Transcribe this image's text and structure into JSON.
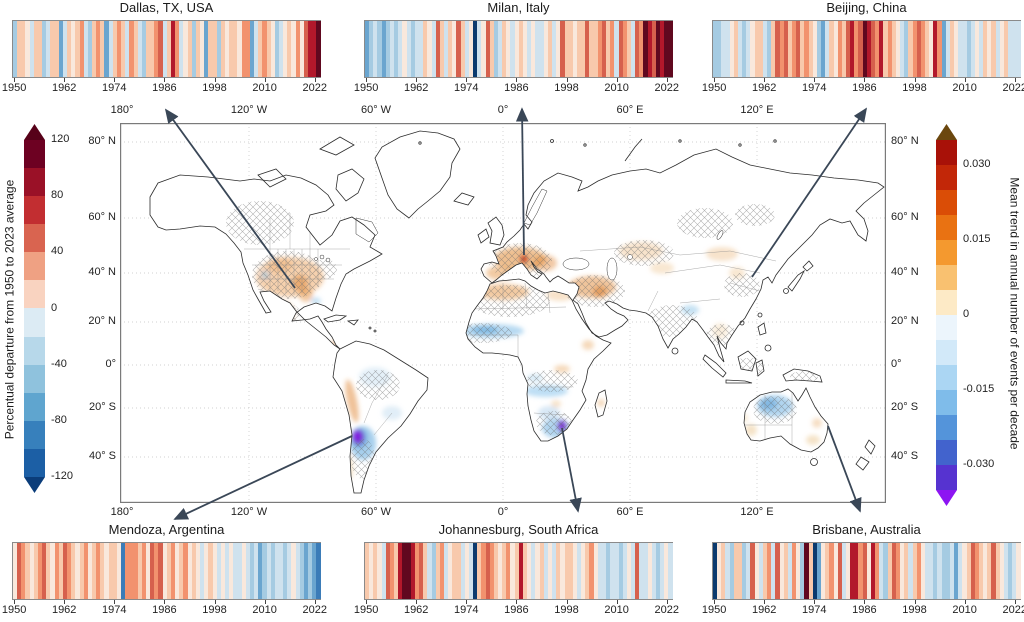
{
  "stripe_palette": {
    "K": "#60081f",
    "R": "#b2182b",
    "r": "#d6604d",
    "O": "#f2926e",
    "o": "#f8c9ac",
    "v": "#f9e8dc",
    "p": "#cfe2ee",
    "L": "#a5cbe2",
    "M": "#6aa5cf",
    "D": "#3b7cb8",
    "Z": "#0b3a6e"
  },
  "chart_data": [
    {
      "type": "stripes",
      "id": "dallas",
      "title": "Dallas, TX, USA",
      "x_range": [
        1950,
        2023
      ],
      "x_ticks": [
        1950,
        1962,
        1974,
        1986,
        1998,
        2010,
        2022
      ],
      "value_colorbar": "Percentual departure from 1950 to 2023 average",
      "stripe_colors": "LoovpooLpooMpovoOpLoOoMpoOopOopLooOrpoROpvoLovMooLovoovOOMpoOovLpvovOvrRRK"
    },
    {
      "type": "stripes",
      "id": "milan",
      "title": "Milan, Italy",
      "x_range": [
        1950,
        2023
      ],
      "x_ticks": [
        1950,
        1962,
        1974,
        1986,
        1998,
        2010,
        2022
      ],
      "value_colorbar": "Percentual departure from 1950 to 2023 average",
      "stripe_colors": "MLpLMLpLpvpLppovpropovropvZpvroLpovpvovpvppvopvroovoorooOroOprOoprOKRrKRKK"
    },
    {
      "type": "stripes",
      "id": "beijing",
      "title": "Beijing, China",
      "x_range": [
        1950,
        2023
      ],
      "x_ticks": [
        1950,
        1962,
        1974,
        1986,
        1998,
        2010,
        2022
      ],
      "value_colorbar": "Percentual departure from 1950 to 2023 average",
      "stripe_colors": "LLppvopLpvoopLorOroOroOovLMpovOorROrKRrORoOovpLoOrOovROMpovppLpvpovopvoppp"
    },
    {
      "type": "stripes",
      "id": "mendoza",
      "title": "Mendoza, Argentina",
      "x_range": [
        1950,
        2023
      ],
      "x_ticks": [
        1950,
        1962,
        1974,
        1986,
        1998,
        2010,
        2022
      ],
      "value_colorbar": "Percentual departure from 1950 to 2023 average",
      "stripe_colors": "vrOovoOrovOorOovoOvoOovoovDOOOoOvrOrvoOvoOvovpvovpvpvppvpLpMLpLppLpvpLMLMD"
    },
    {
      "type": "stripes",
      "id": "johannesburg",
      "title": "Johannesburg, South Africa",
      "x_range": [
        1950,
        2023
      ],
      "x_ticks": [
        1950,
        1962,
        1974,
        1986,
        1998,
        2010,
        2022
      ],
      "value_colorbar": "Percentual departure from 1950 to 2023 average",
      "stripe_colors": "ovovprOoRKKROropLoOpvoopvpZoOrOovoOvoRovpvopvpovoovpvoOvppLppLpvprppvpLpvp"
    },
    {
      "type": "stripes",
      "id": "brisbane",
      "title": "Brisbane, Australia",
      "x_range": [
        1950,
        2023
      ],
      "x_ticks": [
        1950,
        1962,
        1974,
        1986,
        1998,
        2010,
        2022
      ],
      "value_colorbar": "Percentual departure from 1950 to 2023 average",
      "stripe_colors": "ZvopLooLprvpoOprvopOvLKoZMvoOvrpvRROrvROpLorOvopoOvppLpLLpMpvorOovorovpLpv"
    },
    {
      "type": "map",
      "id": "world-map",
      "lon_labels": [
        "180°",
        "120° W",
        "60° W",
        "0°",
        "60° E",
        "120° E"
      ],
      "lat_labels": [
        "80° N",
        "60° N",
        "40° N",
        "20° N",
        "0°",
        "20° S",
        "40° S"
      ],
      "colorbars": {
        "left": {
          "label": "Percentual departure from 1950 to 2023 average",
          "range": [
            -120,
            120
          ],
          "tick_values": [
            120,
            80,
            40,
            0,
            -40,
            -80,
            -120
          ],
          "tick_labels": [
            "120",
            "80",
            "40",
            "0",
            "-40",
            "-80",
            "-120"
          ],
          "arrow_top": "#570119",
          "arrow_bottom": "#0b3d7a",
          "segments": [
            "#6d0122",
            "#9a1127",
            "#c22e31",
            "#d96450",
            "#efa183",
            "#f9d3c0",
            "#dcebf4",
            "#b7d8ea",
            "#8fc2dd",
            "#5fa5cf",
            "#3780bc",
            "#1c5fa5"
          ]
        },
        "right": {
          "label": "Mean trend in annual number of events per decade",
          "range": [
            -0.035,
            0.035
          ],
          "tick_values": [
            0.03,
            0.015,
            0,
            -0.015,
            -0.03
          ],
          "tick_labels": [
            "0.030",
            "0.015",
            "0",
            "-0.015",
            "-0.030"
          ],
          "arrow_top": "#6b470e",
          "arrow_bottom": "#8d15f2",
          "segments": [
            "#a81108",
            "#c22708",
            "#da4d06",
            "#e97212",
            "#f4992f",
            "#f9c170",
            "#fdeac6",
            "#ecf5fc",
            "#d2e9f9",
            "#abd6f3",
            "#7fbcea",
            "#5494da",
            "#4263cd",
            "#5633d0"
          ]
        }
      },
      "annotated_cities": [
        "Dallas, TX, USA",
        "Milan, Italy",
        "Beijing, China",
        "Mendoza, Argentina",
        "Johannesburg, South Africa",
        "Brisbane, Australia"
      ]
    }
  ]
}
